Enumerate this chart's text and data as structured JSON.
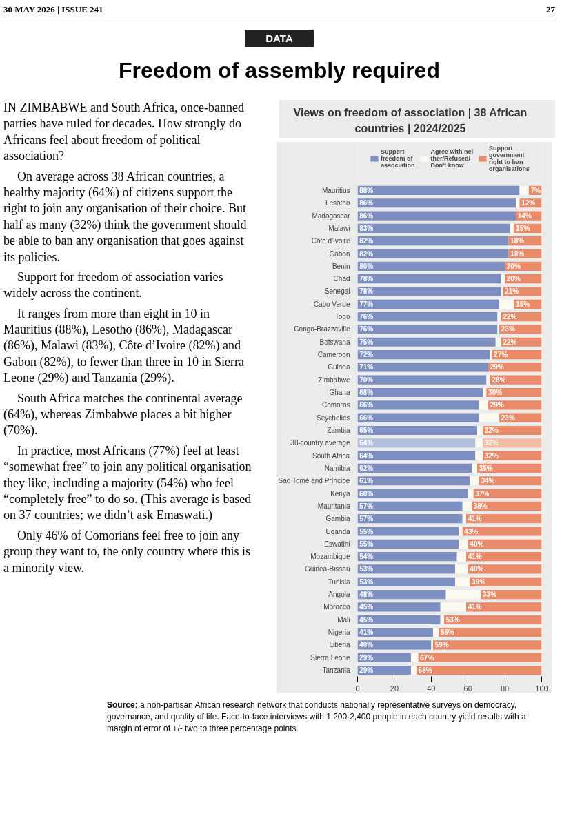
{
  "chart_data": {
    "type": "bar",
    "orientation": "horizontal",
    "stacked": true,
    "title": "Views on freedom of association | 38 African countries | 2024/2025",
    "categories": [
      "Mauritius",
      "Lesotho",
      "Madagascar",
      "Malawi",
      "Côte d'Ivoire",
      "Gabon",
      "Benin",
      "Chad",
      "Senegal",
      "Cabo Verde",
      "Togo",
      "Congo-Brazzaville",
      "Botswana",
      "Cameroon",
      "Guinea",
      "Zimbabwe",
      "Ghana",
      "Comoros",
      "Seychelles",
      "Zambia",
      "38-country average",
      "South Africa",
      "Namibia",
      "São Tomé and Príncipe",
      "Kenya",
      "Mauritania",
      "Gambia",
      "Uganda",
      "Eswatini",
      "Mozambique",
      "Guinea-Bissau",
      "Tunisia",
      "Angola",
      "Morocco",
      "Mali",
      "Nigeria",
      "Liberia",
      "Sierra Leone",
      "Tanzania"
    ],
    "series": [
      {
        "name": "Support freedom of association",
        "color": "#7d8fc0",
        "colors": [
          "#7d8fc0",
          "#7d8fc0",
          "#7d8fc0",
          "#7d8fc0",
          "#7d8fc0",
          "#7d8fc0",
          "#7d8fc0",
          "#7d8fc0",
          "#7d8fc0",
          "#7d8fc0",
          "#7d8fc0",
          "#7d8fc0",
          "#7d8fc0",
          "#7d8fc0",
          "#7d8fc0",
          "#7d8fc0",
          "#7d8fc0",
          "#7d8fc0",
          "#7d8fc0",
          "#7d8fc0",
          "#b4bfdd",
          "#7d8fc0",
          "#7d8fc0",
          "#7d8fc0",
          "#7d8fc0",
          "#7d8fc0",
          "#7d8fc0",
          "#7d8fc0",
          "#7d8fc0",
          "#7d8fc0",
          "#7d8fc0",
          "#7d8fc0",
          "#7d8fc0",
          "#7d8fc0",
          "#7d8fc0",
          "#7d8fc0",
          "#7d8fc0",
          "#7d8fc0",
          "#7d8fc0"
        ],
        "values": [
          88,
          86,
          86,
          83,
          82,
          82,
          80,
          78,
          78,
          77,
          76,
          76,
          75,
          72,
          71,
          70,
          68,
          66,
          66,
          65,
          64,
          64,
          62,
          61,
          60,
          57,
          57,
          55,
          55,
          54,
          53,
          53,
          48,
          45,
          45,
          41,
          40,
          29,
          29
        ],
        "value_labels": [
          "88%",
          "86%",
          "86%",
          "83%",
          "82%",
          "82%",
          "80%",
          "78%",
          "78%",
          "77%",
          "76%",
          "76%",
          "75%",
          "72%",
          "71%",
          "70%",
          "68%",
          "66%",
          "66%",
          "65%",
          "64%",
          "64%",
          "62%",
          "61%",
          "60%",
          "57%",
          "57%",
          "55%",
          "55%",
          "54%",
          "53%",
          "53%",
          "48%",
          "45%",
          "45%",
          "41%",
          "40%",
          "29%",
          "29%"
        ]
      },
      {
        "name": "Agree with neither/Refused/ Don't know",
        "color": "#fcfaf0",
        "values": [
          5,
          2,
          0,
          2,
          0,
          0,
          0,
          2,
          1,
          8,
          2,
          1,
          3,
          1,
          0,
          2,
          2,
          5,
          11,
          3,
          4,
          4,
          3,
          5,
          3,
          5,
          2,
          2,
          5,
          5,
          7,
          8,
          19,
          14,
          2,
          3,
          1,
          4,
          3
        ]
      },
      {
        "name": "Support government right to ban organisations",
        "color": "#e98a68",
        "colors": [
          "#e98a68",
          "#e98a68",
          "#e98a68",
          "#e98a68",
          "#e98a68",
          "#e98a68",
          "#e98a68",
          "#e98a68",
          "#e98a68",
          "#e98a68",
          "#e98a68",
          "#e98a68",
          "#e98a68",
          "#e98a68",
          "#e98a68",
          "#e98a68",
          "#e98a68",
          "#e98a68",
          "#e98a68",
          "#e98a68",
          "#f3bba6",
          "#e98a68",
          "#e98a68",
          "#e98a68",
          "#e98a68",
          "#e98a68",
          "#e98a68",
          "#e98a68",
          "#e98a68",
          "#e98a68",
          "#e98a68",
          "#e98a68",
          "#e98a68",
          "#e98a68",
          "#e98a68",
          "#e98a68",
          "#e98a68",
          "#e98a68",
          "#e98a68"
        ],
        "values": [
          7,
          12,
          14,
          15,
          18,
          18,
          20,
          20,
          21,
          15,
          22,
          23,
          22,
          27,
          29,
          28,
          30,
          29,
          23,
          32,
          32,
          32,
          35,
          34,
          37,
          38,
          41,
          43,
          40,
          41,
          40,
          39,
          33,
          41,
          53,
          56,
          59,
          67,
          68
        ],
        "value_labels": [
          "7%",
          "12%",
          "14%",
          "15%",
          "18%",
          "18%",
          "20%",
          "20%",
          "21%",
          "15%",
          "22%",
          "23%",
          "22%",
          "27%",
          "29%",
          "28%",
          "30%",
          "29%",
          "23%",
          "32%",
          "32%",
          "32%",
          "35%",
          "34%",
          "37%",
          "38%",
          "41%",
          "43%",
          "40%",
          "41%",
          "40%",
          "39%",
          "33%",
          "41%",
          "53%",
          "56%",
          "59%",
          "67%",
          "68%"
        ]
      }
    ],
    "xlim": [
      0,
      100
    ],
    "xticks": [
      0,
      20,
      40,
      60,
      80,
      100
    ],
    "grid": false,
    "legend": "top",
    "annotations": [
      "30 MAY 2026 | ISSUE 241",
      "27",
      "DATA",
      "Freedom of assembly required",
      "IN ZIMBABWE and South Africa, once-banned parties have ruled for decades. How strongly do Africans feel about freedom of political association?",
      "On average across 38 African countries, a healthy majority (64%) of citizens support the right to join any organisation of their choice. But half as many (32%) think the government should be able to ban any organisation that goes against its policies.",
      "Support for freedom of association varies widely across the continent.",
      "It ranges from more than eight in 10 in Mauritius (88%), Lesotho (86%), Madagascar (86%), Malawi (83%), Côte d’Ivoire (82%) and Gabon (82%), to fewer than three in 10 in Sierra Leone (29%) and Tanzania (29%).",
      "South Africa matches the continental average (64%), whereas Zimbabwe places a bit higher (70%).",
      "In practice, most Africans (77%) feel at least “somewhat free” to join any political organisation they like, including a majority (54%) who feel “completely free” to do so. (This average is based on 37 countries; we didn’t ask Emaswati.)",
      "Only 46% of Comorians feel free to join any group they want to, the only country where this is a minority view.",
      "Source: a non-partisan African research network that conducts nationally representative surveys on democracy, governance, and quality of life. Face-to-face interviews with 1,200-2,400 people in each country yield results with a margin of error of +/- two to three percentage points."
    ]
  }
}
